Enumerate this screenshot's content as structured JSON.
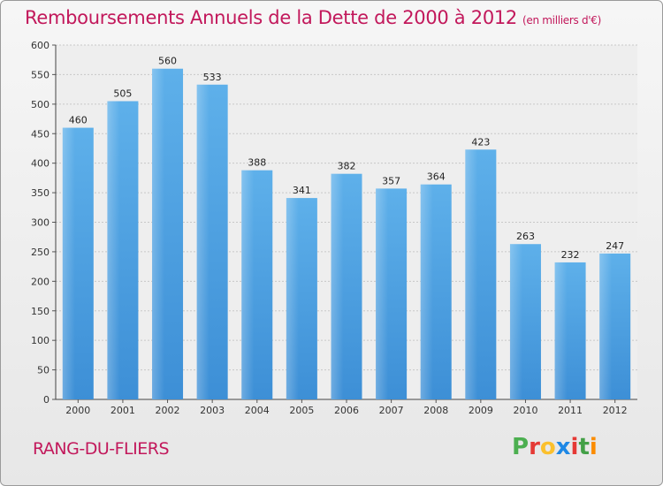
{
  "chart_data": {
    "type": "bar",
    "title": "Remboursements Annuels de la Dette de 2000 à 2012",
    "subtitle": "(en milliers d'€)",
    "categories": [
      "2000",
      "2001",
      "2002",
      "2003",
      "2004",
      "2005",
      "2006",
      "2007",
      "2008",
      "2009",
      "2010",
      "2011",
      "2012"
    ],
    "values": [
      460,
      505,
      560,
      533,
      388,
      341,
      382,
      357,
      364,
      423,
      263,
      232,
      247
    ],
    "ylim": [
      0,
      600
    ],
    "yticks": [
      0,
      50,
      100,
      150,
      200,
      250,
      300,
      350,
      400,
      450,
      500,
      550,
      600
    ],
    "grid": true,
    "bar_color": "#3d8fd6",
    "bar_color_light": "#5eb0ea"
  },
  "footer": {
    "commune": "RANG-DU-FLIERS",
    "logo_text": "Proxiti",
    "logo_colors": [
      "#4caf50",
      "#e53935",
      "#fbc02d",
      "#1e88e5",
      "#e53935",
      "#43a047",
      "#fb8c00"
    ]
  }
}
